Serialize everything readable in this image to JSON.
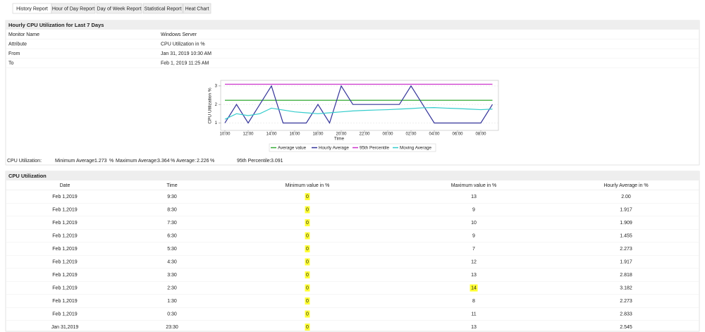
{
  "tabs": [
    "History Report",
    "Hour of Day Report",
    "Day of Week Report",
    "Statistical Report",
    "Heat Chart"
  ],
  "report": {
    "title": "Hourly CPU Utilization for Last 7 Days",
    "fields": [
      [
        "Monitor Name",
        "Windows Server"
      ],
      [
        "Attribute",
        "CPU Utilization in %"
      ],
      [
        "From",
        "Jan 31, 2019 10:30 AM"
      ],
      [
        "To",
        "Feb 1, 2019 11:25 AM"
      ]
    ]
  },
  "chart_data": {
    "type": "line",
    "y_label": "CPU Utilization %",
    "x_label": "Time",
    "categories": [
      "10:00",
      null,
      "12:00",
      null,
      "14:00",
      null,
      "16:00",
      null,
      "18:00",
      null,
      "20:00",
      null,
      "22:00",
      null,
      "00:00",
      null,
      "02:00",
      null,
      "04:00",
      null,
      "06:00",
      null,
      "08:00",
      null
    ],
    "series": [
      {
        "name": "Average value",
        "color": "#33aa33",
        "values": [
          2.226,
          2.226,
          2.226,
          2.226,
          2.226,
          2.226,
          2.226,
          2.226,
          2.226,
          2.226,
          2.226,
          2.226,
          2.226,
          2.226,
          2.226,
          2.226,
          2.226,
          2.226,
          2.226,
          2.226,
          2.226,
          2.226,
          2.226,
          2.226
        ]
      },
      {
        "name": "Hourly Average",
        "color": "#333399",
        "values": [
          1,
          2,
          1,
          2,
          3,
          1,
          1,
          1,
          2,
          1,
          3,
          2,
          2,
          2,
          2,
          2,
          3,
          2,
          1,
          1,
          1,
          1,
          1,
          2
        ]
      },
      {
        "name": "95th Percentile",
        "color": "#cc33cc",
        "values": [
          3.091,
          3.091,
          3.091,
          3.091,
          3.091,
          3.091,
          3.091,
          3.091,
          3.091,
          3.091,
          3.091,
          3.091,
          3.091,
          3.091,
          3.091,
          3.091,
          3.091,
          3.091,
          3.091,
          3.091,
          3.091,
          3.091,
          3.091,
          3.091
        ]
      },
      {
        "name": "Moving Average",
        "color": "#33cccc",
        "values": [
          1.2,
          1.5,
          1.4,
          1.5,
          1.8,
          1.7,
          1.6,
          1.55,
          1.5,
          1.55,
          1.6,
          1.65,
          1.68,
          1.7,
          1.72,
          1.75,
          1.78,
          1.82,
          1.83,
          1.8,
          1.78,
          1.75,
          1.72,
          1.75
        ]
      }
    ],
    "ylim": [
      0.6,
      3.3
    ],
    "yticks": [
      1,
      2,
      3
    ],
    "grid": true
  },
  "summary": {
    "label": "CPU Utilization:",
    "items": [
      {
        "label": "Minimum Average:",
        "value": 1.273,
        "unit": "%"
      },
      {
        "label": "Maximum Average:",
        "value": 3.364,
        "unit": "%"
      },
      {
        "label": "Average:",
        "value": 2.226,
        "unit": "%"
      },
      {
        "label": "95th Percentile:",
        "value": 3.091
      }
    ]
  },
  "table": {
    "title": "CPU Utilization",
    "columns": [
      "Date",
      "Time",
      "Minimum value in %",
      "Maximum value in %",
      "Hourly Average in %"
    ],
    "rows": [
      [
        "Feb 1,2019",
        "9:30",
        0,
        13,
        "2.00"
      ],
      [
        "Feb 1,2019",
        "8:30",
        0,
        9,
        1.917
      ],
      [
        "Feb 1,2019",
        "7:30",
        0,
        10,
        1.909
      ],
      [
        "Feb 1,2019",
        "6:30",
        0,
        9,
        1.455
      ],
      [
        "Feb 1,2019",
        "5:30",
        0,
        7,
        2.273
      ],
      [
        "Feb 1,2019",
        "4:30",
        0,
        12,
        1.917
      ],
      [
        "Feb 1,2019",
        "3:30",
        0,
        13,
        2.818
      ],
      [
        "Feb 1,2019",
        "2:30",
        0,
        14,
        3.182
      ],
      [
        "Feb 1,2019",
        "1:30",
        0,
        8,
        2.273
      ],
      [
        "Feb 1,2019",
        "0:30",
        0,
        11,
        2.833
      ],
      [
        "Jan 31,2019",
        "23:30",
        0,
        13,
        2.545
      ]
    ]
  }
}
